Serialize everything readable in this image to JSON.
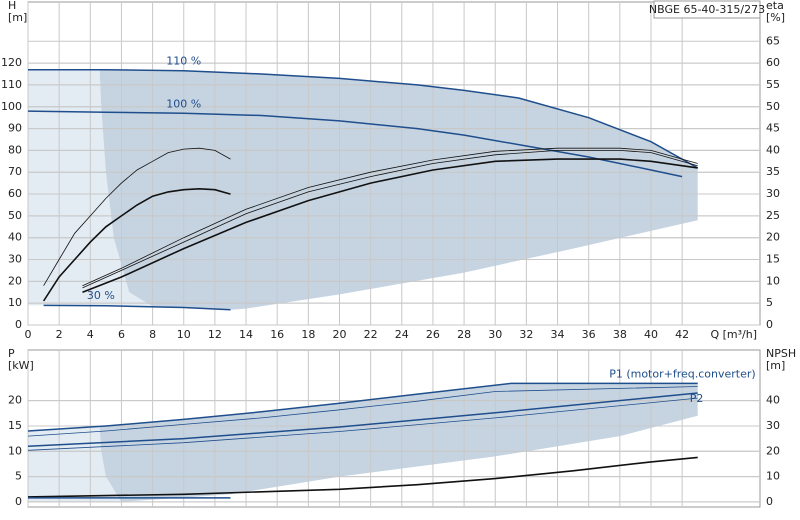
{
  "chart_data": [
    {
      "type": "line",
      "title": "NBGE 65-40-315/273",
      "y_label": [
        "H",
        "[m]"
      ],
      "y2_label": [
        "eta",
        "[%]"
      ],
      "x_label": "Q [m³/h]",
      "xlim": [
        0,
        47
      ],
      "xticks": [
        0,
        2,
        4,
        6,
        8,
        10,
        12,
        14,
        16,
        18,
        20,
        22,
        24,
        26,
        28,
        30,
        32,
        34,
        36,
        38,
        40,
        42
      ],
      "ylim": [
        0,
        148
      ],
      "yticks": [
        0,
        10,
        20,
        30,
        40,
        50,
        60,
        70,
        80,
        90,
        100,
        110,
        120
      ],
      "y2lim": [
        0,
        74
      ],
      "y2ticks": [
        0,
        5,
        10,
        15,
        20,
        25,
        30,
        35,
        40,
        45,
        50,
        55,
        60,
        65
      ],
      "grid": true,
      "areas": [
        {
          "color": "#e3ebf3",
          "x": [
            0,
            4.6,
            4.7,
            5,
            5.5,
            6.5,
            8,
            5,
            1,
            0
          ],
          "values": [
            117,
            117,
            100,
            70,
            40,
            15,
            8.5,
            8.8,
            9,
            9
          ]
        },
        {
          "color": "#c6d4e2",
          "x": [
            4.6,
            10,
            15,
            20,
            25,
            28,
            31.5,
            36,
            40,
            43,
            43,
            35,
            28,
            20,
            14,
            13,
            10,
            8,
            6.5,
            5.5,
            5,
            4.7
          ],
          "values": [
            117,
            116.5,
            115,
            113,
            110,
            107.5,
            104,
            95,
            84,
            72,
            48,
            35,
            24,
            14,
            7.5,
            7,
            8,
            8.5,
            15,
            40,
            70,
            100
          ]
        }
      ],
      "series": [
        {
          "label": "110 %",
          "color": "#1f4e8c",
          "width": 1.5,
          "x": [
            0,
            5,
            10,
            15,
            20,
            25,
            28,
            31.5,
            36,
            40,
            43
          ],
          "values": [
            117,
            117,
            116.5,
            115,
            113,
            110,
            107.5,
            104,
            95,
            84,
            72
          ]
        },
        {
          "label": "100 %",
          "color": "#1f4e8c",
          "width": 1.5,
          "x": [
            0,
            5,
            10,
            15,
            20,
            25,
            28,
            32,
            36,
            40,
            42
          ],
          "values": [
            98,
            97.5,
            97,
            96,
            93.5,
            90,
            87,
            82,
            77,
            71,
            68
          ]
        },
        {
          "label": "30 %",
          "color": "#1f4e8c",
          "width": 1.5,
          "x": [
            1,
            5,
            10,
            13
          ],
          "values": [
            9,
            8.8,
            8,
            7
          ]
        },
        {
          "axis": "y2",
          "color": "#111111",
          "width": 0.8,
          "x": [
            1,
            2,
            3,
            4,
            5,
            6,
            7,
            8,
            9,
            10,
            11,
            12,
            13
          ],
          "values": [
            9,
            15,
            21,
            25,
            29,
            32.5,
            35.5,
            37.5,
            39.5,
            40.3,
            40.5,
            40,
            38
          ]
        },
        {
          "axis": "y2",
          "color": "#111111",
          "width": 1.6,
          "x": [
            1,
            2,
            3,
            4,
            5,
            6,
            7,
            8,
            9,
            10,
            11,
            12,
            13
          ],
          "values": [
            5.5,
            11,
            15,
            19,
            22.5,
            25,
            27.5,
            29.5,
            30.5,
            31,
            31.2,
            31,
            30
          ]
        },
        {
          "axis": "y2",
          "color": "#111111",
          "width": 0.8,
          "x": [
            3.5,
            6,
            10,
            14,
            18,
            22,
            26,
            30,
            34,
            38,
            40,
            43
          ],
          "values": [
            9,
            13,
            20,
            26.5,
            31.5,
            35,
            37.8,
            39.8,
            40.5,
            40.5,
            40,
            37
          ]
        },
        {
          "axis": "y2",
          "color": "#111111",
          "width": 0.8,
          "x": [
            3.5,
            6,
            10,
            14,
            18,
            22,
            26,
            30,
            34,
            38,
            40,
            43
          ],
          "values": [
            8.5,
            12.5,
            19,
            25.5,
            30.5,
            34,
            37,
            39,
            40,
            40,
            39.5,
            36.5
          ]
        },
        {
          "axis": "y2",
          "color": "#111111",
          "width": 1.6,
          "x": [
            3.5,
            6,
            10,
            14,
            18,
            22,
            26,
            30,
            34,
            38,
            40,
            43
          ],
          "values": [
            7.5,
            11,
            17.5,
            23.5,
            28.5,
            32.5,
            35.5,
            37.5,
            38,
            38,
            37.5,
            36
          ]
        }
      ]
    },
    {
      "type": "line",
      "y_label": [
        "P",
        "[kW]"
      ],
      "y2_label": [
        "NPSH",
        "[m]"
      ],
      "xlim": [
        0,
        47
      ],
      "xticks": [
        0,
        2,
        4,
        6,
        8,
        10,
        12,
        14,
        16,
        18,
        20,
        22,
        24,
        26,
        28,
        30,
        32,
        34,
        36,
        38,
        40,
        42
      ],
      "ylim": [
        -1,
        30
      ],
      "yticks": [
        0,
        5,
        10,
        15,
        20
      ],
      "y2lim": [
        -2,
        60
      ],
      "y2ticks": [
        0,
        10,
        20,
        30,
        40
      ],
      "grid": true,
      "areas": [
        {
          "color": "#e3ebf3",
          "x": [
            0,
            4.6,
            4.7,
            5,
            6,
            0
          ],
          "values": [
            14,
            15,
            10,
            5,
            0,
            0
          ]
        },
        {
          "color": "#c6d4e2",
          "x": [
            4.6,
            10,
            20,
            31,
            43,
            43,
            38,
            30,
            20,
            13,
            6,
            5,
            4.7
          ],
          "values": [
            15,
            16.3,
            19.5,
            23.4,
            23.4,
            17,
            13,
            9,
            5,
            1.5,
            0,
            5,
            10
          ]
        }
      ],
      "series": [
        {
          "label": "P1 (motor+freq.converter)",
          "color": "#1f4e8c",
          "width": 1.5,
          "x": [
            0,
            5,
            10,
            15,
            20,
            25,
            31,
            43
          ],
          "values": [
            14,
            15,
            16.3,
            17.8,
            19.5,
            21.3,
            23.4,
            23.4
          ]
        },
        {
          "color": "#1f4e8c",
          "width": 0.8,
          "x": [
            0,
            5,
            10,
            15,
            20,
            25,
            30,
            43
          ],
          "values": [
            13,
            14,
            15.3,
            16.6,
            18.2,
            19.9,
            21.8,
            22.8
          ]
        },
        {
          "label": "P2",
          "color": "#1f4e8c",
          "width": 1.5,
          "x": [
            0,
            10,
            20,
            30,
            43
          ],
          "values": [
            11,
            12.5,
            14.8,
            17.6,
            21.5
          ]
        },
        {
          "color": "#1f4e8c",
          "width": 0.8,
          "x": [
            0,
            10,
            20,
            30,
            43
          ],
          "values": [
            10.2,
            11.7,
            13.9,
            16.6,
            20.5
          ]
        },
        {
          "axis": "y2",
          "color": "#111111",
          "width": 1.6,
          "x": [
            0,
            5,
            10,
            15,
            20,
            25,
            30,
            35,
            40,
            43
          ],
          "values": [
            2,
            2.5,
            3,
            4,
            5,
            6.8,
            9.2,
            12.3,
            15.8,
            17.6
          ]
        },
        {
          "color": "#1f4e8c",
          "width": 1.5,
          "x": [
            0,
            13
          ],
          "values": [
            0.8,
            0.8
          ]
        }
      ]
    }
  ]
}
